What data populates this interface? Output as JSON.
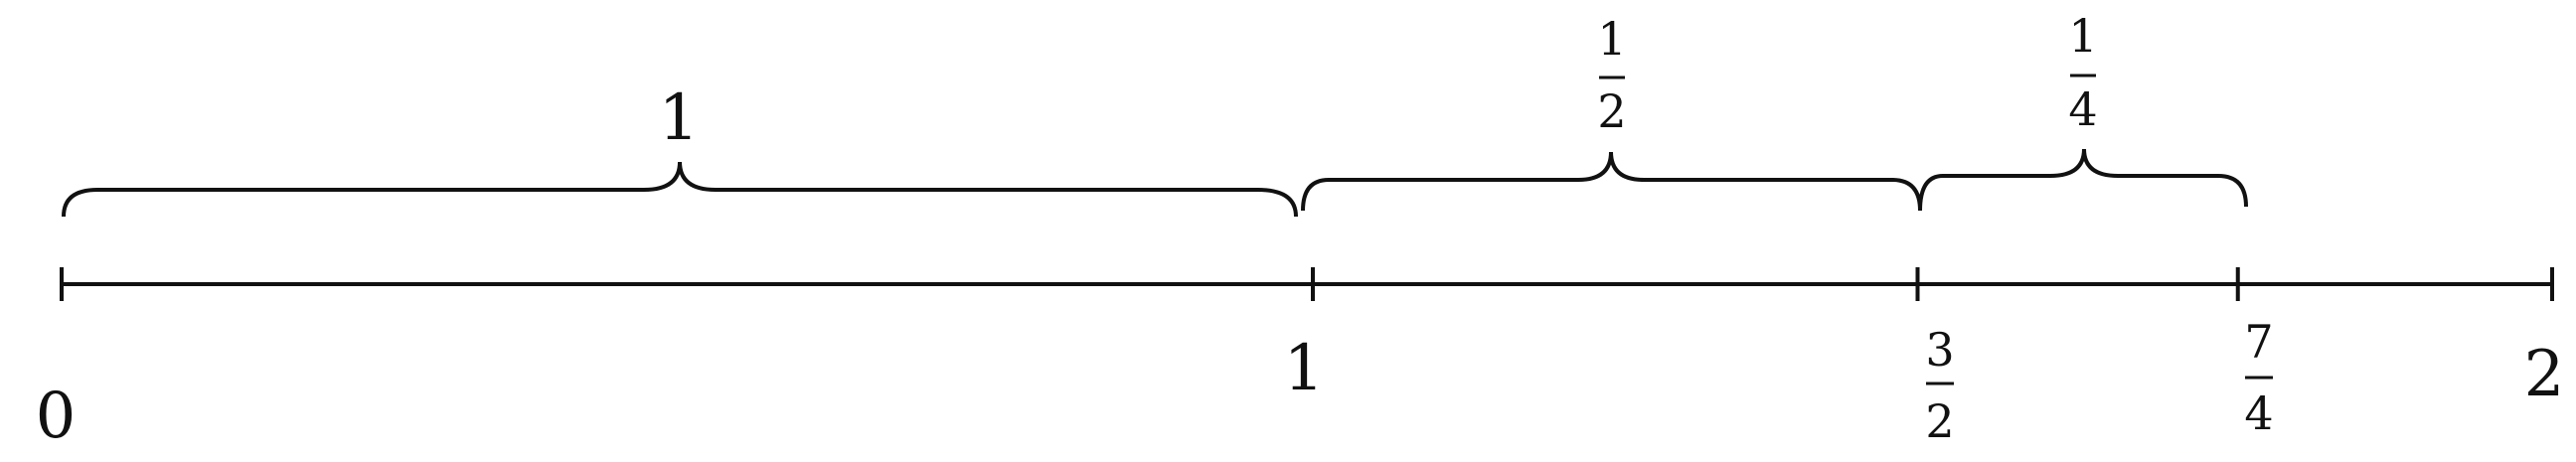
{
  "number_line": {
    "start_label": "0",
    "end_label": "2",
    "ticks": [
      {
        "value": 0,
        "label": "0"
      },
      {
        "value": 1,
        "label": "1"
      },
      {
        "value": 1.5,
        "label_num": "3",
        "label_den": "2"
      },
      {
        "value": 1.75,
        "label_num": "7",
        "label_den": "4"
      },
      {
        "value": 2,
        "label": "2"
      }
    ]
  },
  "braces": [
    {
      "from": 0,
      "to": 1,
      "label": "1"
    },
    {
      "from": 1,
      "to": 1.5,
      "label_num": "1",
      "label_den": "2"
    },
    {
      "from": 1.5,
      "to": 1.75,
      "label_num": "1",
      "label_den": "4"
    }
  ],
  "colors": {
    "line": "#111111",
    "text": "#111111"
  }
}
